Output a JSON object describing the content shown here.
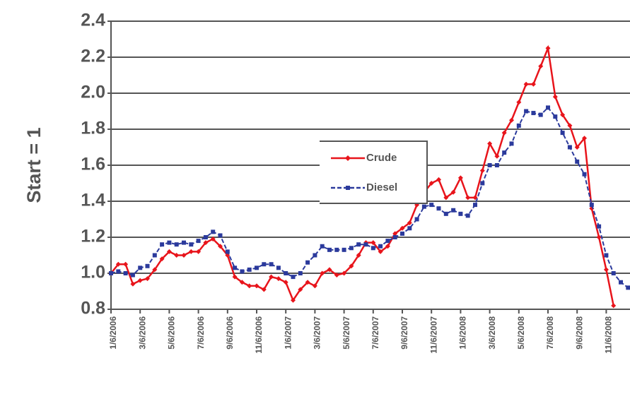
{
  "chart_data": {
    "type": "line",
    "y_label": "Start = 1",
    "categories": [
      "1/6/2006",
      null,
      null,
      null,
      "3/6/2006",
      null,
      null,
      null,
      "5/6/2006",
      null,
      null,
      null,
      "7/6/2006",
      null,
      null,
      null,
      "9/6/2006",
      null,
      null,
      null,
      "11/6/2006",
      null,
      null,
      null,
      "1/6/2007",
      null,
      null,
      null,
      "3/6/2007",
      null,
      null,
      null,
      "5/6/2007",
      null,
      null,
      null,
      "7/6/2007",
      null,
      null,
      null,
      "9/6/2007",
      null,
      null,
      null,
      "11/6/2007",
      null,
      null,
      null,
      "1/6/2008",
      null,
      null,
      null,
      "3/6/2008",
      null,
      null,
      null,
      "5/6/2008",
      null,
      null,
      null,
      "7/6/2008",
      null,
      null,
      null,
      "9/6/2008",
      null,
      null,
      null,
      "11/6/2008",
      null,
      null,
      null
    ],
    "series": [
      {
        "name": "Crude",
        "color": "#e8141b",
        "values": [
          1.0,
          1.05,
          1.05,
          0.94,
          0.96,
          0.97,
          1.02,
          1.08,
          1.12,
          1.1,
          1.1,
          1.12,
          1.12,
          1.17,
          1.19,
          1.15,
          1.1,
          0.98,
          0.95,
          0.93,
          0.93,
          0.91,
          0.98,
          0.97,
          0.95,
          0.85,
          0.91,
          0.95,
          0.93,
          1.0,
          1.02,
          0.99,
          1.0,
          1.04,
          1.1,
          1.17,
          1.17,
          1.12,
          1.15,
          1.22,
          1.25,
          1.28,
          1.38,
          1.45,
          1.5,
          1.52,
          1.42,
          1.45,
          1.53,
          1.42,
          1.42,
          1.57,
          1.72,
          1.65,
          1.78,
          1.85,
          1.95,
          2.05,
          2.05,
          2.15,
          2.25,
          1.98,
          1.88,
          1.82,
          1.7,
          1.75,
          1.36,
          1.2,
          1.02,
          0.82,
          null,
          null
        ]
      },
      {
        "name": "Diesel",
        "color": "#2b3a9c",
        "values": [
          1.0,
          1.01,
          1.0,
          0.99,
          1.03,
          1.04,
          1.1,
          1.16,
          1.17,
          1.16,
          1.17,
          1.16,
          1.18,
          1.2,
          1.23,
          1.21,
          1.12,
          1.03,
          1.01,
          1.02,
          1.03,
          1.05,
          1.05,
          1.03,
          1.0,
          0.98,
          1.0,
          1.06,
          1.1,
          1.15,
          1.13,
          1.13,
          1.13,
          1.14,
          1.16,
          1.16,
          1.14,
          1.15,
          1.18,
          1.2,
          1.22,
          1.25,
          1.3,
          1.37,
          1.38,
          1.36,
          1.33,
          1.35,
          1.33,
          1.32,
          1.38,
          1.5,
          1.6,
          1.6,
          1.67,
          1.72,
          1.82,
          1.9,
          1.89,
          1.88,
          1.92,
          1.87,
          1.78,
          1.7,
          1.62,
          1.55,
          1.38,
          1.26,
          1.1,
          1.0,
          0.95,
          0.92
        ]
      }
    ],
    "ylim": [
      0.8,
      2.4
    ],
    "yticks": [
      {
        "value": 0.8,
        "label": "0.8"
      },
      {
        "value": 1.0,
        "label": "1.0"
      },
      {
        "value": 1.2,
        "label": "1.2"
      },
      {
        "value": 1.4,
        "label": "1.4"
      },
      {
        "value": 1.6,
        "label": "1.6"
      },
      {
        "value": 1.8,
        "label": "1.8"
      },
      {
        "value": 2.0,
        "label": "2.0"
      },
      {
        "value": 2.2,
        "label": "2.2"
      },
      {
        "value": 2.4,
        "label": "2.4"
      }
    ],
    "grid": true
  }
}
